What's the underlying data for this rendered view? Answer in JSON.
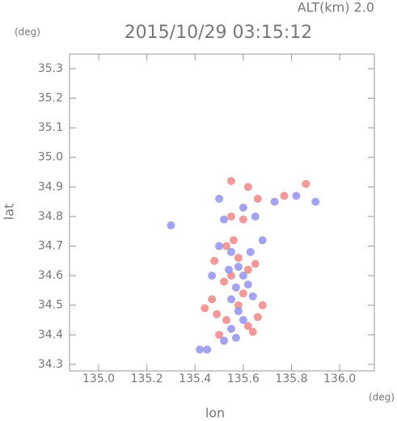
{
  "chart_data": {
    "type": "scatter",
    "title": "2015/10/29 03:15:12",
    "subtitle": "ALT(km) 2.0",
    "y_unit": "(deg)",
    "x_unit": "(deg)",
    "x_label": "lon",
    "y_label": "lat",
    "xlim": [
      134.879,
      136.144
    ],
    "ylim": [
      34.278,
      35.349
    ],
    "xticks": [
      {
        "value": 135,
        "label": "135.0"
      },
      135.2,
      135.4,
      135.6,
      135.8,
      {
        "value": 136,
        "label": "136.0"
      }
    ],
    "yticks": [
      34.3,
      34.4,
      34.5,
      34.6,
      34.7,
      34.8,
      34.9,
      {
        "value": 35,
        "label": "35.0"
      },
      35.1,
      35.2,
      35.3
    ],
    "series": [
      {
        "color": "#f08080",
        "x": [
          135.55,
          135.62,
          135.66,
          135.77,
          135.53,
          135.56,
          135.48,
          135.58,
          135.62,
          135.52,
          135.55,
          135.65,
          135.47,
          135.6,
          135.68,
          135.49,
          135.66,
          135.53,
          135.62,
          135.58,
          135.44,
          135.5,
          135.64,
          135.55,
          135.6,
          135.86
        ],
        "values": [
          34.92,
          34.9,
          34.86,
          34.87,
          34.7,
          34.72,
          34.65,
          34.66,
          34.62,
          34.58,
          34.6,
          34.64,
          34.52,
          34.54,
          34.5,
          34.47,
          34.46,
          34.45,
          34.43,
          34.5,
          34.49,
          34.4,
          34.41,
          34.8,
          34.79,
          34.91
        ]
      },
      {
        "color": "#8c8cf0",
        "x": [
          135.55,
          135.58,
          135.6,
          135.54,
          135.63,
          135.5,
          135.57,
          135.62,
          135.55,
          135.58,
          135.6,
          135.55,
          135.57,
          135.52,
          135.45,
          135.42,
          135.5,
          135.6,
          135.73,
          135.82,
          135.52,
          135.65,
          135.68,
          135.47,
          135.64,
          135.3,
          135.9
        ],
        "values": [
          34.68,
          34.63,
          34.6,
          34.62,
          34.68,
          34.7,
          34.56,
          34.57,
          34.52,
          34.48,
          34.45,
          34.42,
          34.39,
          34.38,
          34.35,
          34.35,
          34.86,
          34.83,
          34.85,
          34.87,
          34.79,
          34.8,
          34.72,
          34.6,
          34.53,
          34.77,
          34.85
        ]
      }
    ]
  }
}
